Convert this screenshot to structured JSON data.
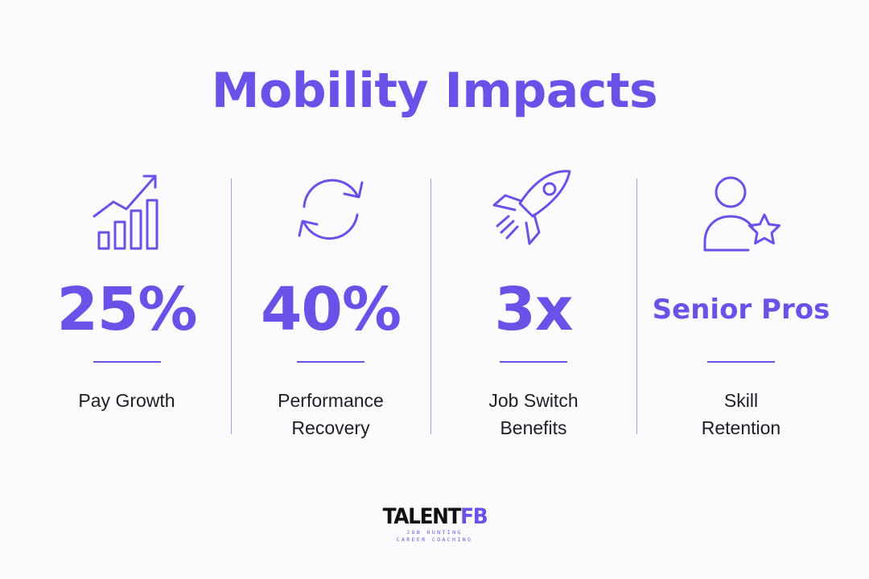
{
  "title": "Mobility Impacts",
  "accent_color": "#6a52e8",
  "text_color": "#1e1e24",
  "stats": [
    {
      "icon": "growth-chart-icon",
      "value": "25%",
      "label_lines": [
        "Pay Growth"
      ]
    },
    {
      "icon": "refresh-arrows-icon",
      "value": "40%",
      "label_lines": [
        "Performance",
        "Recovery"
      ]
    },
    {
      "icon": "rocket-icon",
      "value": "3x",
      "label_lines": [
        "Job Switch",
        "Benefits"
      ]
    },
    {
      "icon": "user-star-icon",
      "value": "Senior Pros",
      "label_lines": [
        "Skill",
        "Retention"
      ]
    }
  ],
  "logo": {
    "brand_part1": "TALENT",
    "brand_part2": "FB",
    "tagline_line1": "JOB HUNTING",
    "tagline_line2": "CAREER COACHING"
  }
}
